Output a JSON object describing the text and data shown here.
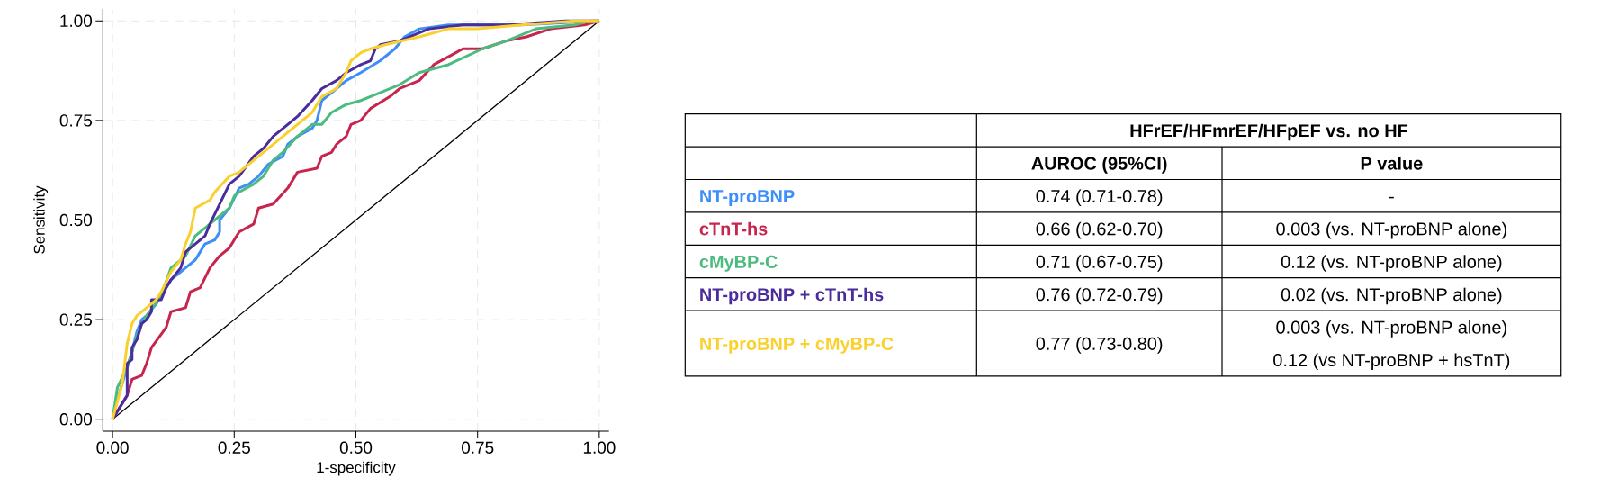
{
  "chart_data": {
    "type": "line",
    "xlabel": "1-specificity",
    "ylabel": "Sensitivity",
    "xlim": [
      -0.02,
      1.02
    ],
    "ylim": [
      -0.03,
      1.03
    ],
    "xticks": [
      {
        "value": 0,
        "label": "0.00"
      },
      {
        "value": 0.25,
        "label": "0.25"
      },
      {
        "value": 0.5,
        "label": "0.50"
      },
      {
        "value": 0.75,
        "label": "0.75"
      },
      {
        "value": 1,
        "label": "1.00"
      }
    ],
    "yticks": [
      {
        "value": 0,
        "label": "0.00"
      },
      {
        "value": 0.25,
        "label": "0.25"
      },
      {
        "value": 0.5,
        "label": "0.50"
      },
      {
        "value": 0.75,
        "label": "0.75"
      },
      {
        "value": 1,
        "label": "1.00"
      }
    ],
    "grid": true,
    "legend": "right",
    "series": [
      {
        "color": "#000000",
        "x": [
          0,
          1
        ],
        "values": [
          0,
          1
        ]
      },
      {
        "name": "NT-proBNP",
        "color": "#3e8ef7",
        "x": [
          0,
          0.01,
          0.04,
          0.05,
          0.06,
          0.07,
          0.09,
          0.1,
          0.12,
          0.14,
          0.15,
          0.16,
          0.17,
          0.18,
          0.19,
          0.21,
          0.22,
          0.22,
          0.24,
          0.26,
          0.28,
          0.3,
          0.32,
          0.35,
          0.36,
          0.38,
          0.41,
          0.42,
          0.43,
          0.46,
          0.48,
          0.51,
          0.55,
          0.58,
          0.6,
          0.63,
          0.69,
          0.75,
          0.84,
          1
        ],
        "values": [
          0,
          0.05,
          0.17,
          0.22,
          0.25,
          0.26,
          0.29,
          0.31,
          0.35,
          0.37,
          0.38,
          0.39,
          0.4,
          0.42,
          0.44,
          0.45,
          0.47,
          0.5,
          0.53,
          0.58,
          0.59,
          0.61,
          0.64,
          0.66,
          0.69,
          0.71,
          0.73,
          0.75,
          0.8,
          0.83,
          0.85,
          0.87,
          0.9,
          0.93,
          0.96,
          0.98,
          0.99,
          0.99,
          0.99,
          1
        ]
      },
      {
        "name": "cTnT-hs",
        "color": "#c7254e",
        "x": [
          0,
          0.03,
          0.04,
          0.06,
          0.07,
          0.08,
          0.11,
          0.12,
          0.15,
          0.16,
          0.18,
          0.2,
          0.22,
          0.24,
          0.26,
          0.29,
          0.3,
          0.33,
          0.36,
          0.38,
          0.42,
          0.43,
          0.45,
          0.46,
          0.48,
          0.49,
          0.51,
          0.53,
          0.57,
          0.59,
          0.63,
          0.66,
          0.69,
          0.72,
          0.76,
          0.81,
          0.85,
          0.9,
          0.97,
          1
        ],
        "values": [
          0,
          0.06,
          0.1,
          0.11,
          0.14,
          0.18,
          0.23,
          0.27,
          0.28,
          0.32,
          0.33,
          0.38,
          0.41,
          0.43,
          0.47,
          0.49,
          0.53,
          0.54,
          0.58,
          0.62,
          0.63,
          0.66,
          0.67,
          0.69,
          0.71,
          0.74,
          0.75,
          0.78,
          0.81,
          0.83,
          0.85,
          0.89,
          0.91,
          0.93,
          0.93,
          0.95,
          0.96,
          0.98,
          0.99,
          1
        ]
      },
      {
        "name": "cMyBP-C",
        "color": "#4cbb7f",
        "x": [
          0,
          0.01,
          0.03,
          0.04,
          0.05,
          0.06,
          0.07,
          0.1,
          0.12,
          0.15,
          0.17,
          0.19,
          0.21,
          0.24,
          0.25,
          0.26,
          0.29,
          0.31,
          0.33,
          0.35,
          0.38,
          0.41,
          0.43,
          0.45,
          0.48,
          0.51,
          0.53,
          0.59,
          0.63,
          0.69,
          0.76,
          0.81,
          0.87,
          0.95,
          0.98,
          1
        ],
        "values": [
          0,
          0.08,
          0.13,
          0.17,
          0.21,
          0.24,
          0.26,
          0.31,
          0.38,
          0.41,
          0.46,
          0.48,
          0.5,
          0.53,
          0.56,
          0.57,
          0.59,
          0.61,
          0.65,
          0.67,
          0.71,
          0.74,
          0.74,
          0.77,
          0.79,
          0.8,
          0.81,
          0.84,
          0.87,
          0.89,
          0.93,
          0.95,
          0.98,
          0.99,
          1,
          1
        ]
      },
      {
        "name": "NT-proBNP + cTnT-hs",
        "color": "#4a2c9c",
        "x": [
          0,
          0.03,
          0.03,
          0.04,
          0.04,
          0.05,
          0.06,
          0.07,
          0.08,
          0.08,
          0.1,
          0.11,
          0.12,
          0.14,
          0.15,
          0.17,
          0.19,
          0.2,
          0.22,
          0.24,
          0.26,
          0.29,
          0.31,
          0.33,
          0.36,
          0.38,
          0.41,
          0.43,
          0.46,
          0.48,
          0.51,
          0.53,
          0.54,
          0.55,
          0.59,
          0.65,
          0.72,
          0.81,
          0.93,
          1
        ],
        "values": [
          0,
          0.06,
          0.14,
          0.15,
          0.18,
          0.2,
          0.24,
          0.25,
          0.27,
          0.3,
          0.3,
          0.33,
          0.35,
          0.38,
          0.42,
          0.44,
          0.46,
          0.49,
          0.54,
          0.59,
          0.61,
          0.66,
          0.68,
          0.71,
          0.74,
          0.76,
          0.8,
          0.83,
          0.85,
          0.87,
          0.89,
          0.9,
          0.93,
          0.94,
          0.95,
          0.98,
          0.99,
          0.99,
          1,
          1
        ]
      },
      {
        "name": "NT-proBNP + cMyBP-C",
        "color": "#fad02c",
        "x": [
          0,
          0.02,
          0.03,
          0.04,
          0.05,
          0.07,
          0.09,
          0.1,
          0.12,
          0.14,
          0.15,
          0.16,
          0.17,
          0.2,
          0.21,
          0.24,
          0.26,
          0.29,
          0.32,
          0.36,
          0.38,
          0.41,
          0.43,
          0.46,
          0.48,
          0.49,
          0.51,
          0.53,
          0.56,
          0.63,
          0.69,
          0.75,
          0.84,
          0.95,
          1
        ],
        "values": [
          0,
          0.09,
          0.19,
          0.24,
          0.26,
          0.28,
          0.3,
          0.32,
          0.37,
          0.4,
          0.44,
          0.47,
          0.53,
          0.55,
          0.57,
          0.61,
          0.62,
          0.65,
          0.68,
          0.72,
          0.74,
          0.77,
          0.81,
          0.83,
          0.87,
          0.9,
          0.92,
          0.93,
          0.94,
          0.96,
          0.98,
          0.98,
          0.99,
          1,
          1
        ]
      }
    ],
    "annotations": [
      "HFrEF/HFmrEF/HFpEF vs. no HF",
      "AUROC (95%CI)",
      "P value",
      "0.74 (0.71-0.78)",
      "0.66 (0.62-0.70)",
      "0.71 (0.67-0.75)",
      "0.76 (0.72-0.79)",
      "0.77 (0.73-0.80)",
      "-",
      "0.003 (vs. NT-proBNP alone)",
      "0.12 (vs. NT-proBNP alone)",
      "0.02 (vs. NT-proBNP alone)",
      "0.003 (vs. NT-proBNP alone)",
      "0.12 (vs NT-proBNP + hsTnT)"
    ]
  }
}
